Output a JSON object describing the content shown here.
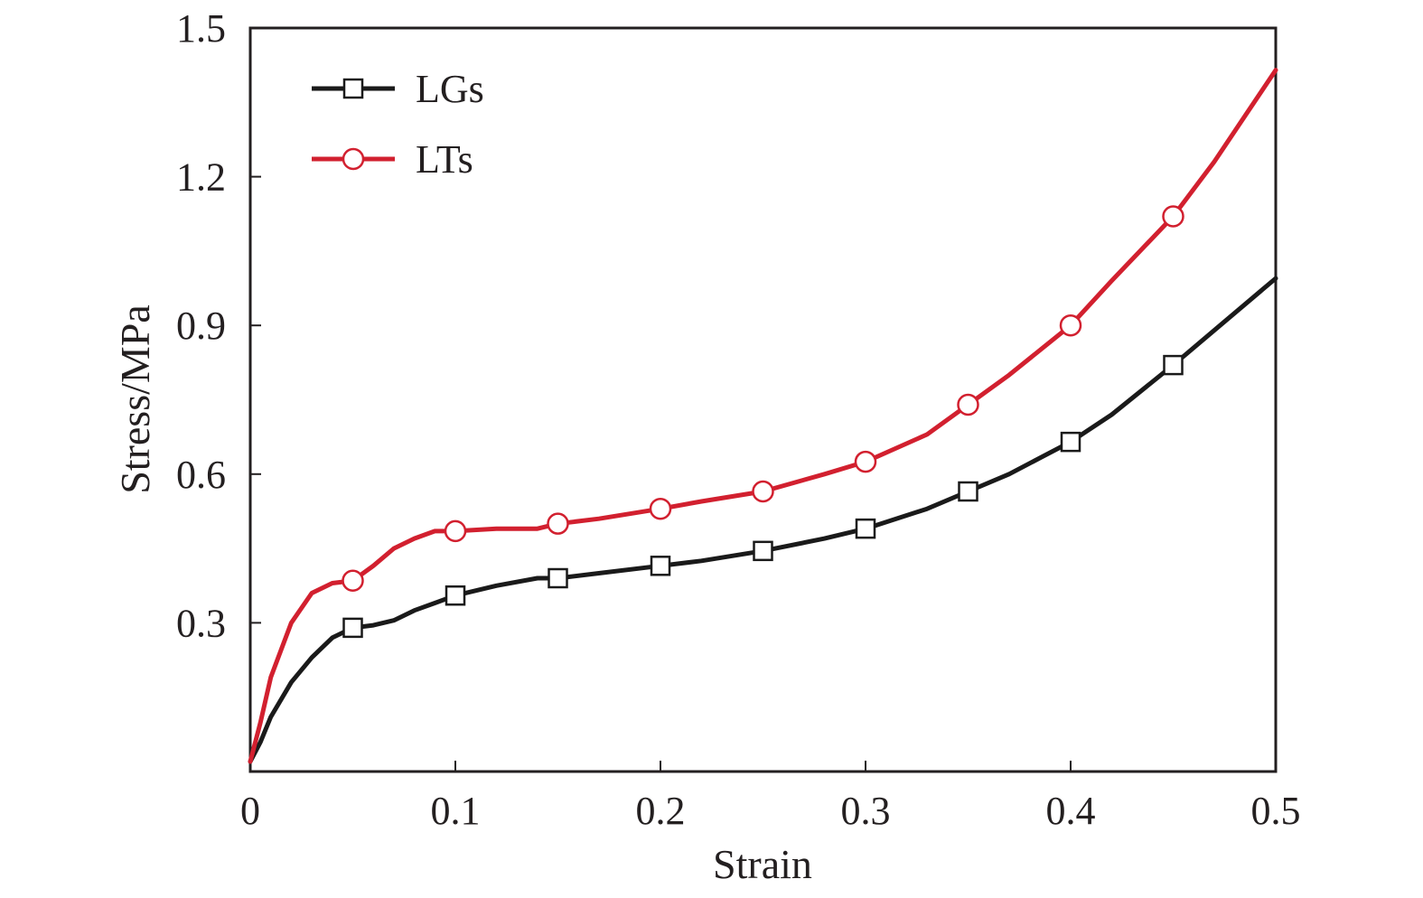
{
  "chart_data": {
    "type": "line",
    "title": "",
    "xlabel": "Strain",
    "ylabel": "Stress/MPa",
    "xlim": [
      0,
      0.5
    ],
    "ylim": [
      0,
      1.5
    ],
    "x_ticks": [
      0,
      0.1,
      0.2,
      0.3,
      0.4,
      0.5
    ],
    "x_tick_labels": [
      "0",
      "0.1",
      "0.2",
      "0.3",
      "0.4",
      "0.5"
    ],
    "y_ticks": [
      0.3,
      0.6,
      0.9,
      1.2,
      1.5
    ],
    "y_tick_labels": [
      "0.3",
      "0.6",
      "0.9",
      "1.2",
      "1.5"
    ],
    "grid": false,
    "legend_position": "top-left",
    "series": [
      {
        "name": "LGs",
        "color": "#1a1a1a",
        "marker": "square",
        "marker_x": [
          0.05,
          0.1,
          0.15,
          0.2,
          0.25,
          0.3,
          0.35,
          0.4,
          0.45
        ],
        "x": [
          0.0,
          0.005,
          0.01,
          0.02,
          0.03,
          0.04,
          0.05,
          0.06,
          0.07,
          0.08,
          0.09,
          0.1,
          0.12,
          0.14,
          0.15,
          0.17,
          0.2,
          0.22,
          0.25,
          0.28,
          0.3,
          0.33,
          0.35,
          0.37,
          0.4,
          0.42,
          0.45,
          0.47,
          0.5
        ],
        "y": [
          0.02,
          0.06,
          0.11,
          0.18,
          0.23,
          0.27,
          0.29,
          0.295,
          0.305,
          0.325,
          0.34,
          0.355,
          0.375,
          0.39,
          0.39,
          0.4,
          0.415,
          0.425,
          0.445,
          0.47,
          0.49,
          0.53,
          0.565,
          0.6,
          0.665,
          0.72,
          0.82,
          0.89,
          0.995
        ]
      },
      {
        "name": "LTs",
        "color": "#d2202f",
        "marker": "circle",
        "marker_x": [
          0.05,
          0.1,
          0.15,
          0.2,
          0.25,
          0.3,
          0.35,
          0.4,
          0.45
        ],
        "x": [
          0.0,
          0.005,
          0.01,
          0.02,
          0.03,
          0.04,
          0.05,
          0.06,
          0.07,
          0.08,
          0.09,
          0.1,
          0.12,
          0.14,
          0.15,
          0.17,
          0.2,
          0.22,
          0.25,
          0.28,
          0.3,
          0.33,
          0.35,
          0.37,
          0.4,
          0.42,
          0.45,
          0.47,
          0.5
        ],
        "y": [
          0.02,
          0.1,
          0.19,
          0.3,
          0.36,
          0.38,
          0.385,
          0.415,
          0.45,
          0.47,
          0.485,
          0.485,
          0.49,
          0.49,
          0.5,
          0.51,
          0.53,
          0.545,
          0.565,
          0.6,
          0.625,
          0.68,
          0.74,
          0.8,
          0.9,
          0.99,
          1.12,
          1.23,
          1.415
        ]
      }
    ]
  }
}
